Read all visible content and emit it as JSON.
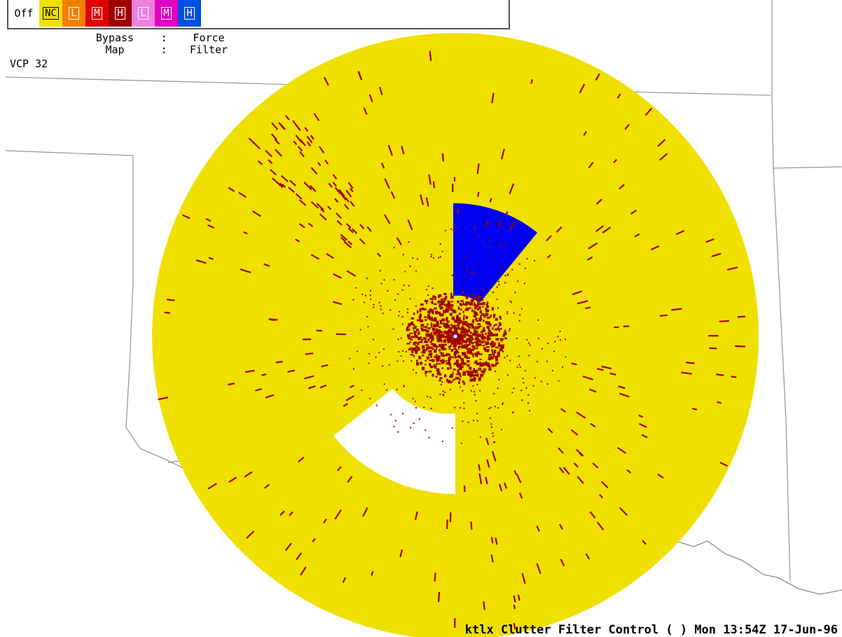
{
  "legend": {
    "swatches": [
      {
        "label": "Off",
        "color": "#ffffff",
        "text_color": "#000000"
      },
      {
        "label": "NC",
        "color": "#f0e000",
        "text_color": "#000000"
      },
      {
        "label": "L",
        "color": "#f08000",
        "text_color": "#ffffff"
      },
      {
        "label": "M",
        "color": "#e00000",
        "text_color": "#ffffff"
      },
      {
        "label": "H",
        "color": "#a00000",
        "text_color": "#ffffff"
      },
      {
        "label": "L",
        "color": "#f080e0",
        "text_color": "#ffffff"
      },
      {
        "label": "M",
        "color": "#e000c0",
        "text_color": "#ffffff"
      },
      {
        "label": "H",
        "color": "#0050e0",
        "text_color": "#ffffff"
      }
    ],
    "bypass_label": "Bypass",
    "bypass_sub": "Map",
    "separator": ":",
    "force_label": "Force",
    "force_sub": "Filter"
  },
  "vcp": "VCP 32",
  "status": "ktlx Clutter Filter Control ( ) Mon 13:54Z 17-Jun-96",
  "colors": {
    "no_clutter": "#f0e000",
    "high_bypass": "#a00000",
    "force_high": "#0000ff",
    "boundary": "#999999",
    "background": "#ffffff"
  }
}
